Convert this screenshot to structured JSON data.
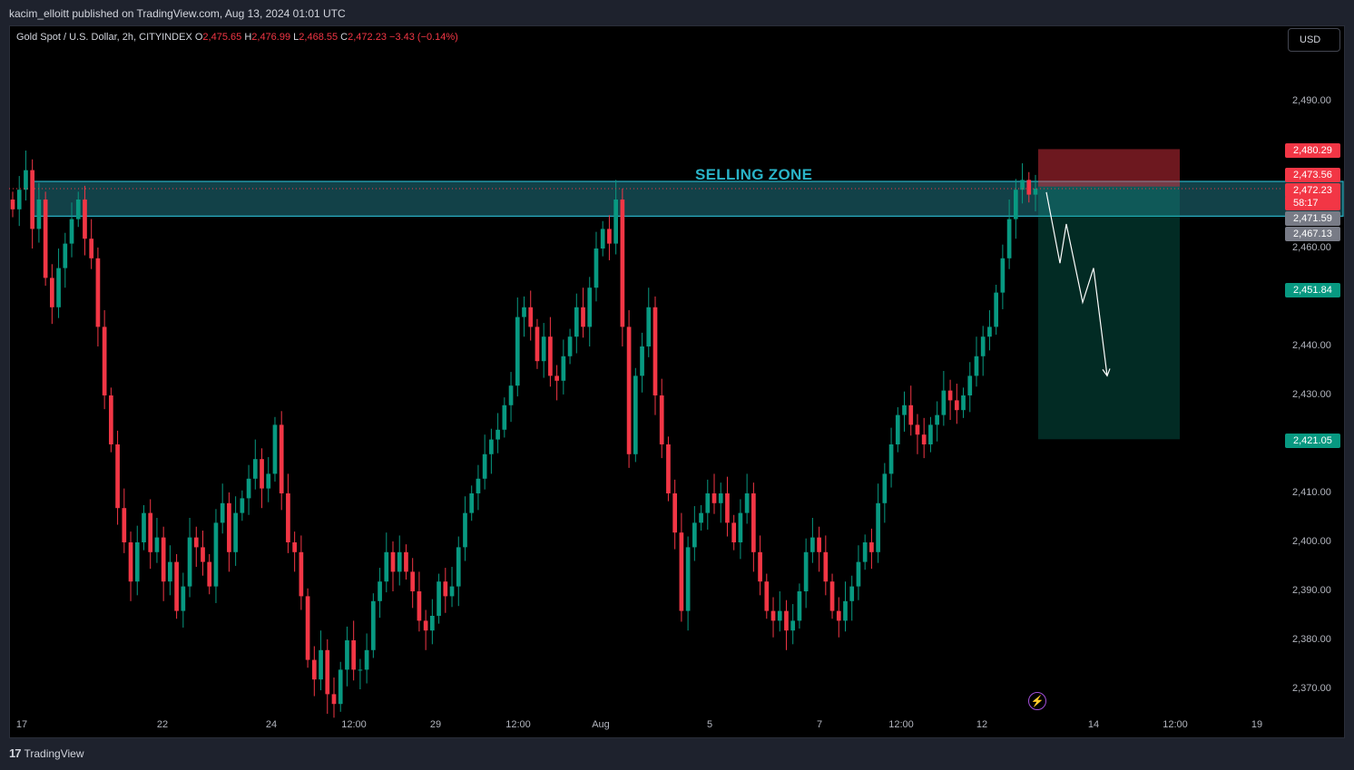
{
  "header": {
    "published_text": "kacim_elloitt published on TradingView.com, Aug 13, 2024 01:01 UTC"
  },
  "legend": {
    "symbol": "Gold Spot / U.S. Dollar, 2h, CITYINDEX",
    "o_label": "O",
    "o_value": "2,475.65",
    "h_label": "H",
    "h_value": "2,476.99",
    "l_label": "L",
    "l_value": "2,468.55",
    "c_label": "C",
    "c_value": "2,472.23",
    "change": "−3.43 (−0.14%)"
  },
  "currency_button": "USD",
  "footer": {
    "logo_text": "TradingView",
    "logo_mark": "17"
  },
  "zone_label": "SELLING ZONE",
  "price_tags": [
    {
      "name": "stop-price-tag",
      "text": "2,480.29",
      "color": "#f23645"
    },
    {
      "name": "entry-price-tag",
      "text": "2,473.56",
      "color": "#f23645"
    },
    {
      "name": "last-price-tag",
      "text": "2,472.23",
      "color": "#f23645"
    },
    {
      "name": "countdown-tag",
      "text": "58:17",
      "color": "#f23645"
    },
    {
      "name": "high-price-tag",
      "text": "2,471.59",
      "color": "#787b86"
    },
    {
      "name": "low-price-tag",
      "text": "2,467.13",
      "color": "#787b86"
    },
    {
      "name": "mid-target-tag",
      "text": "2,451.84",
      "color": "#089981"
    },
    {
      "name": "target-price-tag",
      "text": "2,421.05",
      "color": "#089981"
    }
  ],
  "colors": {
    "up": "#089981",
    "down": "#f23645",
    "zone": "#1e6f7c",
    "background": "#000000"
  },
  "chart_data": {
    "type": "candlestick",
    "symbol": "Gold Spot / U.S. Dollar",
    "interval": "2h",
    "y_ticks": [
      "2,370.00",
      "2,380.00",
      "2,390.00",
      "2,400.00",
      "2,410.00",
      "2,430.00",
      "2,440.00",
      "2,460.00",
      "2,490.00"
    ],
    "x_ticks": [
      "17",
      "22",
      "24",
      "12:00",
      "29",
      "12:00",
      "Aug",
      "5",
      "7",
      "12:00",
      "12",
      "14",
      "12:00",
      "19"
    ],
    "ylim": [
      2364,
      2500
    ],
    "selling_zone": [
      2466.6,
      2473.7
    ],
    "short_position": {
      "stop": 2480.29,
      "entry": 2473.56,
      "target": 2421.05
    },
    "projection_path": [
      2471.5,
      2457.0,
      2465.0,
      2449.0,
      2456.0,
      2434.0
    ],
    "closes": [
      2468,
      2472,
      2476,
      2464,
      2470,
      2454,
      2448,
      2456,
      2461,
      2466,
      2470,
      2462,
      2458,
      2444,
      2430,
      2420,
      2407,
      2400,
      2392,
      2400,
      2406,
      2398,
      2401,
      2392,
      2396,
      2386,
      2391,
      2401,
      2399,
      2396,
      2391,
      2404,
      2408,
      2398,
      2406,
      2409,
      2413,
      2417,
      2411,
      2414,
      2424,
      2410,
      2400,
      2398,
      2389,
      2376,
      2372,
      2378,
      2369,
      2367,
      2374,
      2380,
      2374,
      2374,
      2378,
      2388,
      2392,
      2398,
      2394,
      2398,
      2394,
      2390,
      2384,
      2382,
      2385,
      2392,
      2389,
      2391,
      2399,
      2406,
      2410,
      2413,
      2418,
      2421,
      2423,
      2428,
      2432,
      2446,
      2448,
      2444,
      2437,
      2442,
      2434,
      2433,
      2438,
      2442,
      2448,
      2444,
      2452,
      2460,
      2464,
      2461,
      2470,
      2444,
      2418,
      2434,
      2440,
      2448,
      2430,
      2420,
      2410,
      2402,
      2386,
      2399,
      2404,
      2406,
      2410,
      2408,
      2410,
      2404,
      2400,
      2406,
      2410,
      2398,
      2392,
      2386,
      2384,
      2386,
      2382,
      2384,
      2390,
      2398,
      2401,
      2398,
      2392,
      2386,
      2384,
      2388,
      2391,
      2396,
      2400,
      2398,
      2408,
      2414,
      2420,
      2426,
      2428,
      2424,
      2422,
      2420,
      2424,
      2426,
      2431,
      2429,
      2427,
      2430,
      2434,
      2438,
      2442,
      2444,
      2451,
      2458,
      2466,
      2472,
      2474,
      2471,
      2472.23
    ]
  }
}
